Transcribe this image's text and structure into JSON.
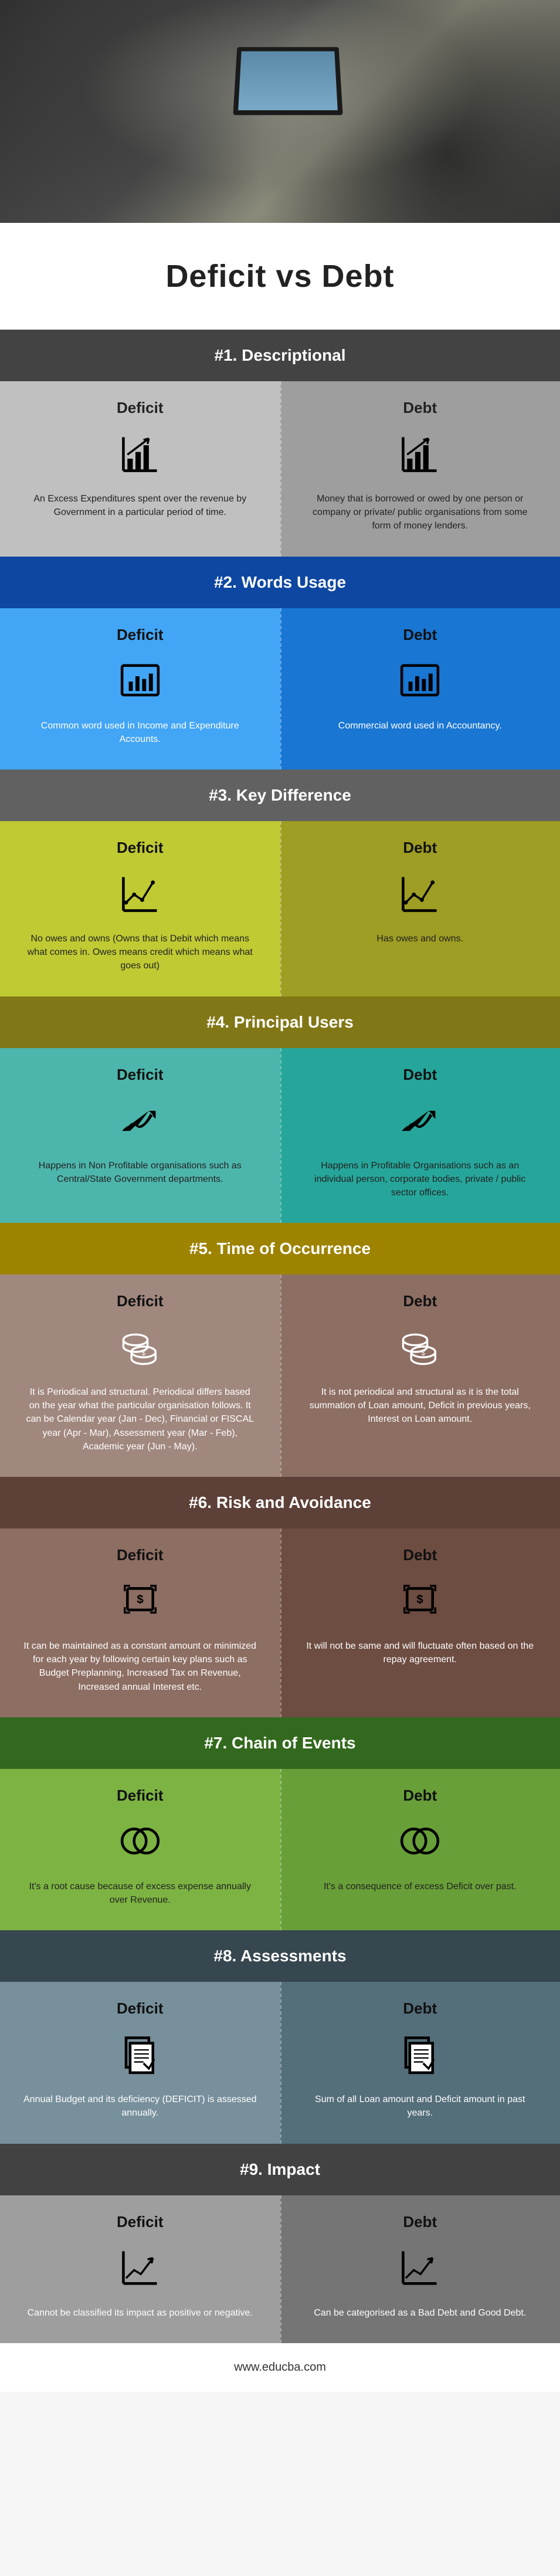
{
  "title": "Deficit vs Debt",
  "footer": "www.educba.com",
  "col_labels": {
    "left": "Deficit",
    "right": "Debt"
  },
  "sections": [
    {
      "num": "#1.",
      "name": "Descriptional",
      "header_class": "dark",
      "body_class": "s1-bg",
      "icon": "bar-up",
      "left": "An Excess Expenditures spent over the revenue by Government in a particular period of time.",
      "right": "Money that is borrowed or owed by one person or company or private/ public organisations from some form of money lenders."
    },
    {
      "num": "#2.",
      "name": "Words Usage",
      "header_class": "s2-h",
      "body_class": "s2-bg",
      "icon": "bar-box",
      "left": "Common word used in Income and Expenditure Accounts.",
      "right": "Commercial word used in Accountancy."
    },
    {
      "num": "#3.",
      "name": "Key Difference",
      "header_class": "s3-h",
      "body_class": "s3-bg",
      "icon": "line-chart",
      "left": "No owes and owns (Owns that is Debit which means what comes in. Owes means credit which means what goes out)",
      "right": "Has owes and owns."
    },
    {
      "num": "#4.",
      "name": "Principal Users",
      "header_class": "s4-h",
      "body_class": "s4-bg",
      "icon": "arrow-up",
      "left": "Happens in Non Profitable organisations such as Central/State Government departments.",
      "right": "Happens in Profitable Organisations such as an individual person, corporate bodies, private / public sector offices."
    },
    {
      "num": "#5.",
      "name": "Time of Occurrence",
      "header_class": "s5-h",
      "body_class": "s5-bg",
      "icon": "coins",
      "left": "It is Periodical and structural. Periodical differs based on the year what the particular organisation follows. It can be Calendar year (Jan - Dec), Financial or FISCAL year (Apr - Mar), Assessment year (Mar - Feb), Academic year (Jun - May).",
      "right": "It is not periodical and structural as it is the total summation of Loan amount, Deficit in previous years, Interest on Loan amount."
    },
    {
      "num": "#6.",
      "name": "Risk and Avoidance",
      "header_class": "s6-h",
      "body_class": "s6-bg",
      "icon": "dollar-box",
      "left": "It can be maintained as a constant amount or minimized for each year by following certain key plans such as Budget Preplanning, Increased Tax on Revenue, Increased annual Interest etc.",
      "right": "It will not be same and will fluctuate often based on the repay agreement."
    },
    {
      "num": "#7.",
      "name": "Chain of Events",
      "header_class": "s7-h",
      "body_class": "s7-bg",
      "icon": "venn",
      "left": "It's a root cause because of excess expense annually over Revenue.",
      "right": "It's a consequence of excess Deficit over past."
    },
    {
      "num": "#8.",
      "name": "Assessments",
      "header_class": "s8-h",
      "body_class": "s8-bg",
      "icon": "doc",
      "left": "Annual Budget and its deficiency (DEFICIT) is assessed annually.",
      "right": "Sum of all Loan amount and Deficit amount in past years."
    },
    {
      "num": "#9.",
      "name": "Impact",
      "header_class": "s9-h",
      "body_class": "s9-bg",
      "icon": "trend",
      "left": "Cannot be classified its impact as positive or negative.",
      "right": "Can be categorised as a Bad Debt and Good Debt."
    }
  ]
}
